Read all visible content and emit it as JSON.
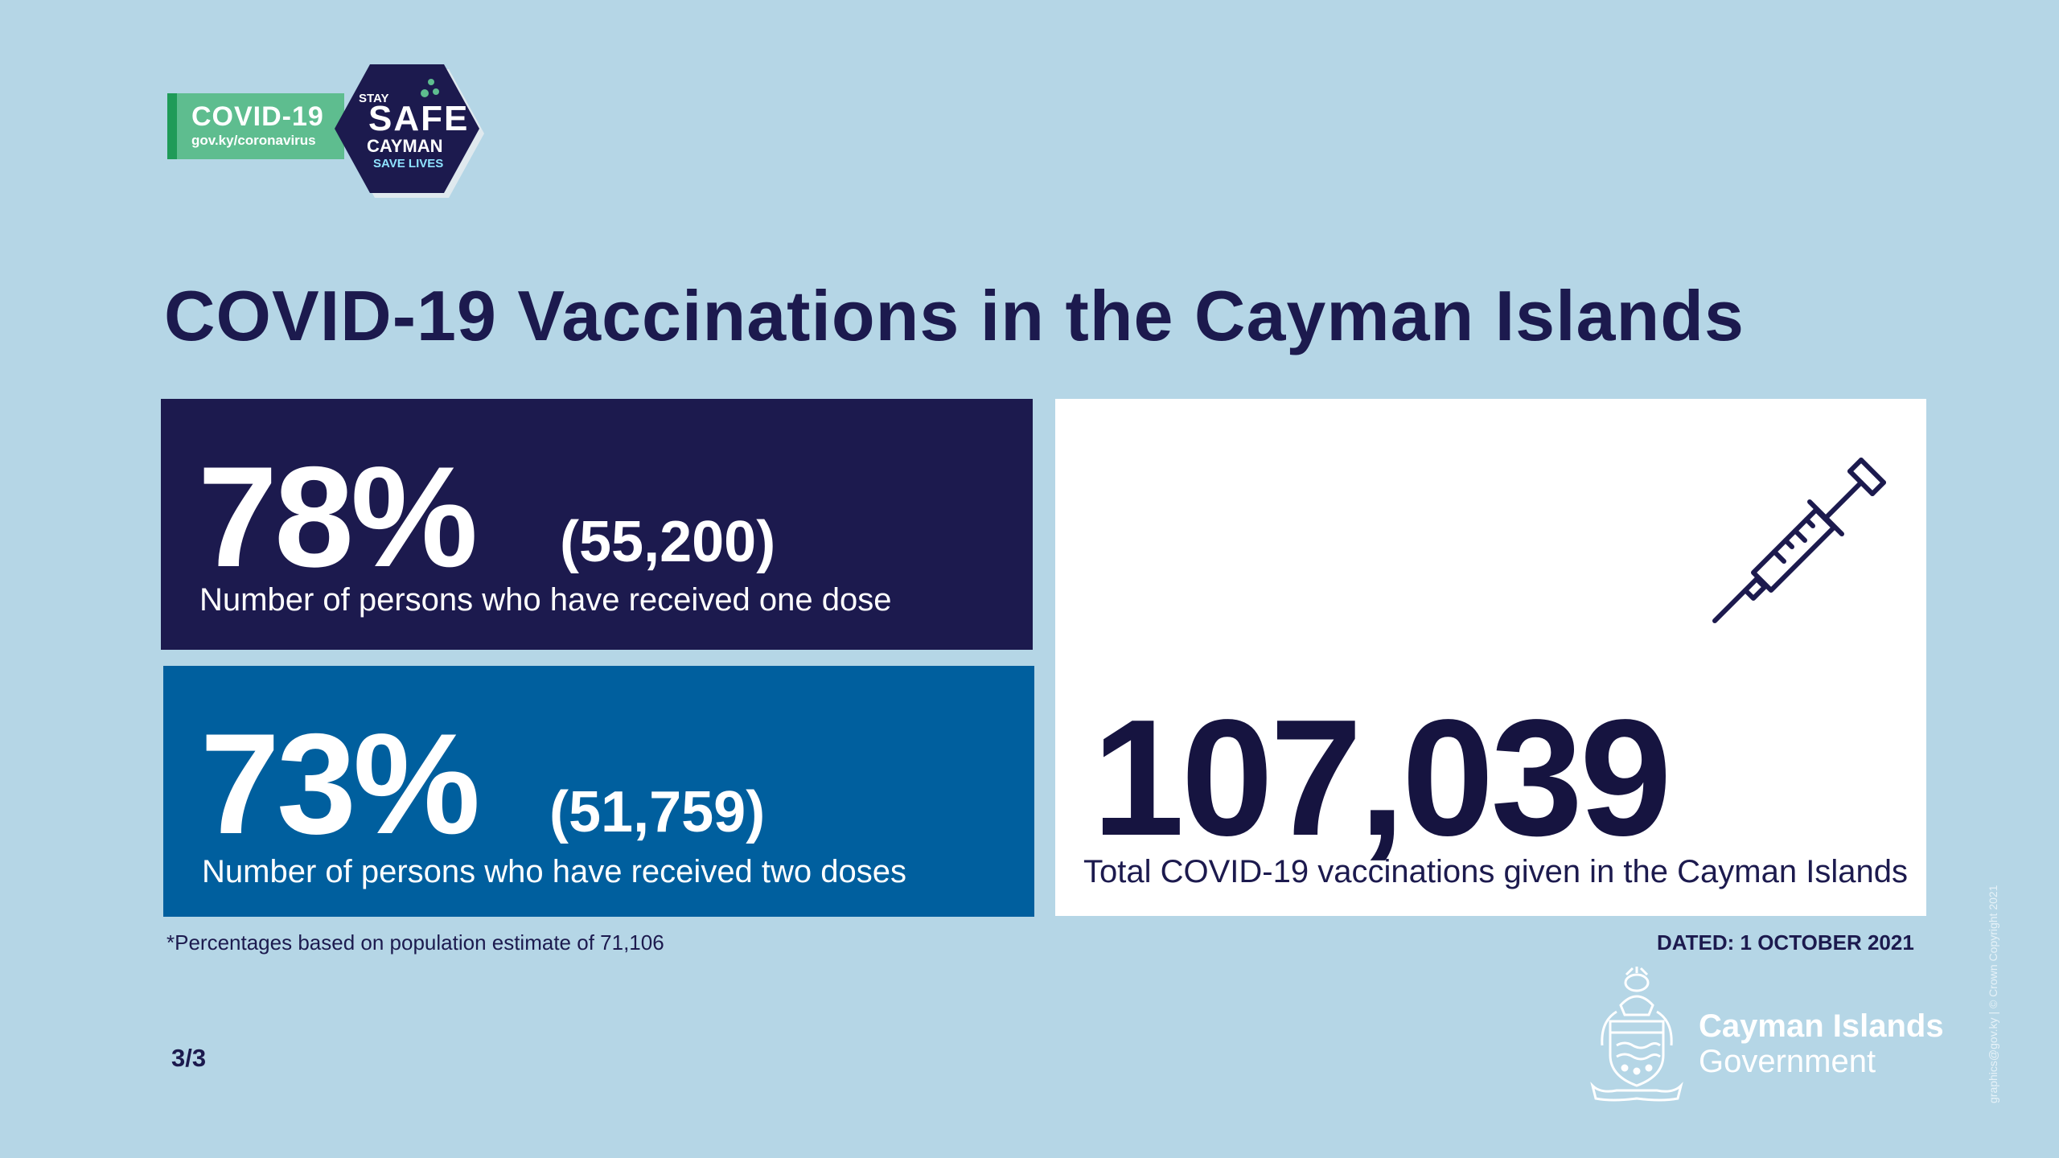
{
  "badge": {
    "covid_label": "COVID-19",
    "url": "gov.ky/coronavirus",
    "hex_stay": "STAY",
    "hex_safe": "SAFE",
    "hex_cayman": "CAYMAN",
    "hex_save": "SAVE LIVES",
    "colors": {
      "green": "#5ebd8f",
      "dark_green": "#1f9b58",
      "navy": "#1c1a4e"
    }
  },
  "title": "COVID-19 Vaccinations in the Cayman Islands",
  "one_dose": {
    "percent": "78%",
    "count": "(55,200)",
    "caption": "Number of persons who have received one dose",
    "color": "#1c1a4e"
  },
  "two_doses": {
    "percent": "73%",
    "count": "(51,759)",
    "caption": "Number of persons who have received two doses",
    "color": "#005f9e"
  },
  "total": {
    "number": "107,039",
    "caption": "Total COVID-19 vaccinations given in the Cayman Islands",
    "icon": "syringe-icon"
  },
  "footnote": "*Percentages based on population estimate of 71,106",
  "dated": "DATED: 1 OCTOBER 2021",
  "page_number": "3/3",
  "government": {
    "line1": "Cayman Islands",
    "line2": "Government",
    "crest_icon": "coat-of-arms-icon"
  },
  "credit": "graphics@gov.ky | © Crown Copyright 2021",
  "background_color": "#b5d6e6"
}
